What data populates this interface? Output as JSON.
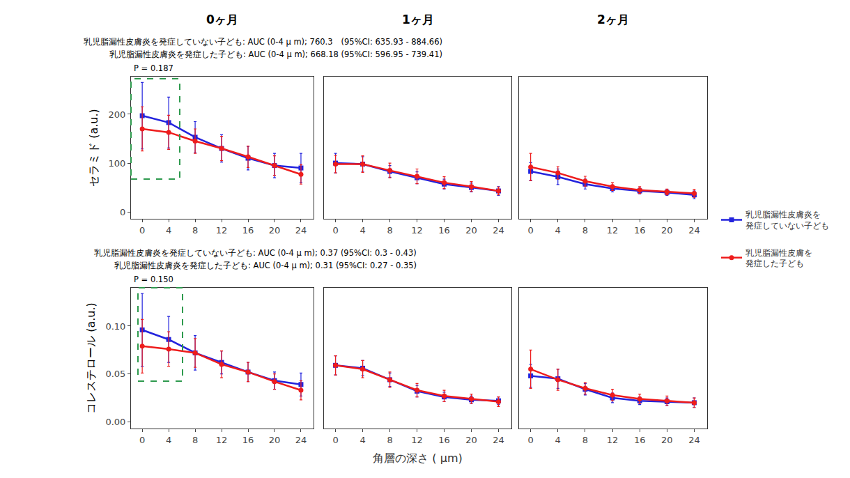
{
  "chart_data": [
    {
      "type": "line",
      "title": "0ヶ月",
      "y_label": "セラミド (a.u.)",
      "legend": "right",
      "grid": false,
      "annotations": [
        "乳児脂漏性皮膚炎を発症していない子ども: AUC (0-4 μ m); 760.3　(95%CI: 635.93 - 884.66)",
        "乳児脂漏性皮膚炎を発症した子ども: AUC (0-4 μ m); 668.18 (95%CI: 596.95 - 739.41)",
        "P = 0.187"
      ],
      "x": [
        0,
        4,
        8,
        12,
        16,
        20,
        24
      ],
      "xlim": [
        -1.7,
        25.9
      ],
      "xticks": [
        0,
        4,
        8,
        12,
        16,
        20,
        24
      ],
      "ylim": [
        -14,
        277
      ],
      "yticks": [
        0,
        100,
        200
      ],
      "series": [
        {
          "name": "乳児脂漏性皮膚炎を発症していない子ども",
          "color": "#2323dd",
          "marker": "square",
          "line_style": "solid",
          "values": [
            197,
            183,
            153,
            130,
            110,
            95,
            90
          ],
          "errors": [
            68,
            52,
            32,
            28,
            24,
            25,
            30
          ]
        },
        {
          "name": "乳児脂漏性皮膚を発症した子ども",
          "color": "#ee1c1c",
          "marker": "circle",
          "line_style": "solid",
          "values": [
            170,
            163,
            145,
            130,
            113,
            95,
            77
          ],
          "errors": [
            45,
            35,
            25,
            25,
            22,
            20,
            20
          ]
        }
      ]
    },
    {
      "type": "line",
      "title": "1ヶ月",
      "tick_labels": "x",
      "grid": false,
      "x": [
        0,
        4,
        8,
        12,
        16,
        20,
        24
      ],
      "xlim": [
        -1.7,
        25.9
      ],
      "xticks": [
        0,
        4,
        8,
        12,
        16,
        20,
        24
      ],
      "ylim": [
        -14,
        277
      ],
      "yticks": [
        0,
        100,
        200
      ],
      "series": [
        {
          "name": "乳児脂漏性皮膚炎を発症していない子ども",
          "color": "#2323dd",
          "marker": "square",
          "line_style": "solid",
          "values": [
            100,
            98,
            83,
            70,
            57,
            50,
            43
          ],
          "errors": [
            20,
            15,
            12,
            12,
            10,
            9,
            9
          ]
        },
        {
          "name": "乳児脂漏性皮膚を発症した子ども",
          "color": "#ee1c1c",
          "marker": "circle",
          "line_style": "solid",
          "values": [
            98,
            98,
            85,
            73,
            60,
            52,
            43
          ],
          "errors": [
            18,
            17,
            15,
            15,
            12,
            10,
            8
          ]
        }
      ]
    },
    {
      "type": "line",
      "title": "2ヶ月",
      "tick_labels": "x",
      "grid": false,
      "x": [
        0,
        4,
        8,
        12,
        16,
        20,
        24
      ],
      "xlim": [
        -1.7,
        25.9
      ],
      "xticks": [
        0,
        4,
        8,
        12,
        16,
        20,
        24
      ],
      "ylim": [
        -14,
        277
      ],
      "yticks": [
        0,
        100,
        200
      ],
      "series": [
        {
          "name": "乳児脂漏性皮膚炎を発症していない子ども",
          "color": "#2323dd",
          "marker": "square",
          "line_style": "solid",
          "values": [
            83,
            72,
            57,
            48,
            43,
            40,
            35
          ],
          "errors": [
            18,
            16,
            10,
            7,
            6,
            6,
            8
          ]
        },
        {
          "name": "乳児脂漏性皮膚を発症した子ども",
          "color": "#ee1c1c",
          "marker": "circle",
          "line_style": "solid",
          "values": [
            92,
            80,
            63,
            52,
            45,
            41,
            38
          ],
          "errors": [
            28,
            13,
            10,
            8,
            7,
            6,
            8
          ]
        }
      ]
    },
    {
      "type": "line",
      "y_label": "コレステロール (a.u.)",
      "grid": false,
      "annotations": [
        "乳児脂漏性皮膚炎を発症していない子ども: AUC (0-4 μ m); 0.37 (95%CI: 0.3 - 0.43)",
        "乳児脂漏性皮膚炎を発症した子ども: AUC (0-4 μ m); 0.31 (95%CI: 0.27 - 0.35)",
        "P = 0.150"
      ],
      "x": [
        0,
        4,
        8,
        12,
        16,
        20,
        24
      ],
      "xlim": [
        -1.7,
        25.9
      ],
      "xticks": [
        0,
        4,
        8,
        12,
        16,
        20,
        24
      ],
      "ylim": [
        -0.007,
        0.14
      ],
      "yticks": [
        {
          "value": 0,
          "label": "0.00"
        },
        {
          "value": 0.05,
          "label": "0.05"
        },
        {
          "value": 0.1,
          "label": "0.10"
        }
      ],
      "series": [
        {
          "name": "乳児脂漏性皮膚炎を発症していない子ども",
          "color": "#2323dd",
          "marker": "square",
          "line_style": "solid",
          "values": [
            0.096,
            0.086,
            0.072,
            0.062,
            0.052,
            0.043,
            0.039
          ],
          "errors": [
            0.038,
            0.024,
            0.018,
            0.012,
            0.01,
            0.009,
            0.012
          ]
        },
        {
          "name": "乳児脂漏性皮膚を発症した子ども",
          "color": "#ee1c1c",
          "marker": "circle",
          "line_style": "solid",
          "values": [
            0.079,
            0.076,
            0.072,
            0.06,
            0.052,
            0.042,
            0.033
          ],
          "errors": [
            0.028,
            0.018,
            0.015,
            0.014,
            0.01,
            0.008,
            0.01
          ]
        }
      ]
    },
    {
      "type": "line",
      "x_label": "角層の深さ ( μm)",
      "tick_labels": "x",
      "grid": false,
      "x": [
        0,
        4,
        8,
        12,
        16,
        20,
        24
      ],
      "xlim": [
        -1.7,
        25.9
      ],
      "xticks": [
        0,
        4,
        8,
        12,
        16,
        20,
        24
      ],
      "ylim": [
        -0.007,
        0.14
      ],
      "yticks": [
        {
          "value": 0,
          "label": "0.00"
        },
        {
          "value": 0.05,
          "label": "0.05"
        },
        {
          "value": 0.1,
          "label": "0.10"
        }
      ],
      "series": [
        {
          "name": "乳児脂漏性皮膚炎を発症していない子ども",
          "color": "#2323dd",
          "marker": "square",
          "line_style": "solid",
          "values": [
            0.059,
            0.056,
            0.044,
            0.032,
            0.026,
            0.023,
            0.022
          ],
          "errors": [
            0.01,
            0.008,
            0.007,
            0.006,
            0.005,
            0.004,
            0.004
          ]
        },
        {
          "name": "乳児脂漏性皮膚を発症した子ども",
          "color": "#ee1c1c",
          "marker": "circle",
          "line_style": "solid",
          "values": [
            0.059,
            0.055,
            0.044,
            0.033,
            0.027,
            0.024,
            0.021
          ],
          "errors": [
            0.01,
            0.009,
            0.008,
            0.007,
            0.006,
            0.005,
            0.005
          ]
        }
      ]
    },
    {
      "type": "line",
      "tick_labels": "x",
      "grid": false,
      "x": [
        0,
        4,
        8,
        12,
        16,
        20,
        24
      ],
      "xlim": [
        -1.7,
        25.9
      ],
      "xticks": [
        0,
        4,
        8,
        12,
        16,
        20,
        24
      ],
      "ylim": [
        -0.007,
        0.14
      ],
      "yticks": [
        {
          "value": 0,
          "label": "0.00"
        },
        {
          "value": 0.05,
          "label": "0.05"
        },
        {
          "value": 0.1,
          "label": "0.10"
        }
      ],
      "series": [
        {
          "name": "乳児脂漏性皮膚炎を発症していない子ども",
          "color": "#2323dd",
          "marker": "square",
          "line_style": "solid",
          "values": [
            0.048,
            0.045,
            0.034,
            0.025,
            0.022,
            0.021,
            0.02
          ],
          "errors": [
            0.012,
            0.01,
            0.006,
            0.005,
            0.004,
            0.004,
            0.005
          ]
        },
        {
          "name": "乳児脂漏性皮膚を発症した子ども",
          "color": "#ee1c1c",
          "marker": "circle",
          "line_style": "solid",
          "values": [
            0.055,
            0.044,
            0.035,
            0.028,
            0.024,
            0.022,
            0.02
          ],
          "errors": [
            0.02,
            0.011,
            0.006,
            0.006,
            0.005,
            0.005,
            0.005
          ]
        }
      ]
    }
  ]
}
